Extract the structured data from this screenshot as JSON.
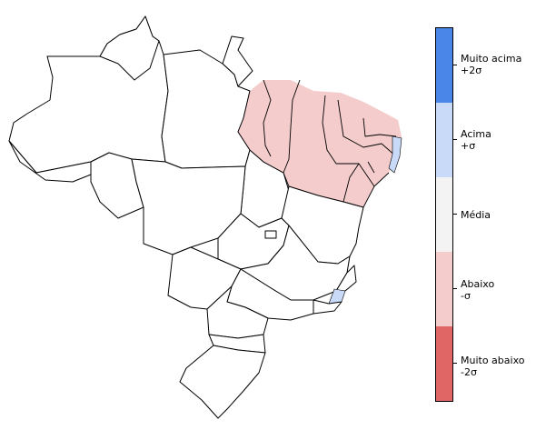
{
  "legend": {
    "items": [
      {
        "line1": "Muito acima",
        "line2": "+2σ",
        "color": "#4a86e8"
      },
      {
        "line1": "Acima",
        "line2": "+σ",
        "color": "#c9daf8"
      },
      {
        "line1": "Média",
        "line2": "",
        "color": "#f3f3f3"
      },
      {
        "line1": "Abaixo",
        "line2": "-σ",
        "color": "#f4cccc"
      },
      {
        "line1": "Muito abaixo",
        "line2": "-2σ",
        "color": "#e06666"
      }
    ]
  },
  "map": {
    "region_colors": {
      "below": "#f4cccc",
      "above": "#c9daf8",
      "states": "#ffffff"
    }
  }
}
